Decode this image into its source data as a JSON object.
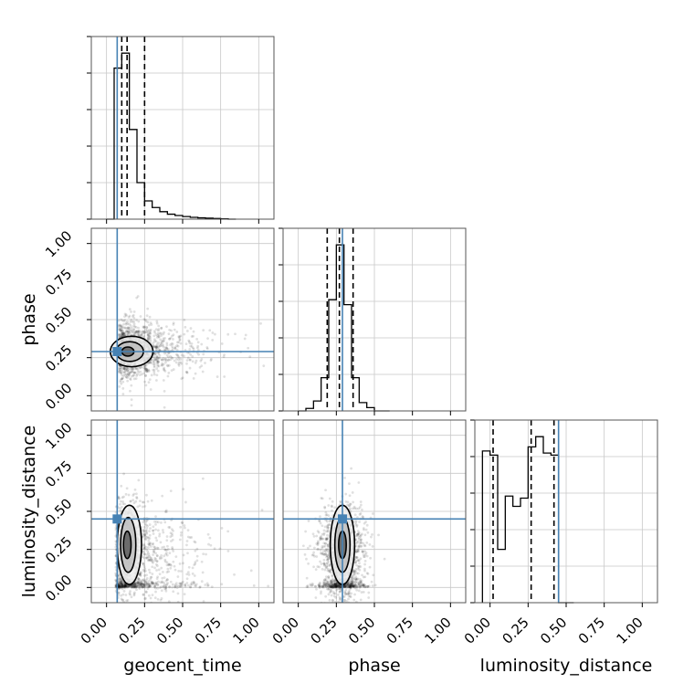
{
  "chart_data": {
    "type": "corner",
    "parameters": [
      "geocent_time",
      "phase",
      "luminosity_distance"
    ],
    "axis_labels": {
      "bottom": [
        "geocent_time",
        "phase",
        "luminosity_distance"
      ],
      "left": [
        "phase",
        "luminosity_distance"
      ]
    },
    "xlim": [
      -0.1,
      1.1
    ],
    "ylim": [
      -0.1,
      1.1
    ],
    "ticks": [
      0.0,
      0.25,
      0.5,
      0.75,
      1.0
    ],
    "tick_labels": [
      "0.00",
      "0.25",
      "0.50",
      "0.75",
      "1.00"
    ],
    "grid": true,
    "truth": {
      "geocent_time": 0.07,
      "phase": 0.29,
      "luminosity_distance": 0.45
    },
    "truth_color": "#4682b4",
    "histograms": {
      "geocent_time": {
        "bins": [
          0.0,
          0.05,
          0.1,
          0.15,
          0.2,
          0.25,
          0.3,
          0.35,
          0.4,
          0.45,
          0.5,
          0.55,
          0.6,
          0.65,
          0.7,
          0.75,
          0.8,
          0.85
        ],
        "heights": [
          0.0,
          0.91,
          1.0,
          0.54,
          0.22,
          0.11,
          0.07,
          0.045,
          0.03,
          0.022,
          0.016,
          0.011,
          0.008,
          0.006,
          0.004,
          0.002,
          0.0
        ],
        "quantiles": [
          0.1,
          0.135,
          0.25
        ]
      },
      "phase": {
        "bins": [
          0.0,
          0.05,
          0.1,
          0.15,
          0.2,
          0.25,
          0.3,
          0.35,
          0.4,
          0.45,
          0.5,
          0.55,
          0.6
        ],
        "heights": [
          0.0,
          0.015,
          0.06,
          0.2,
          0.67,
          1.0,
          0.64,
          0.2,
          0.05,
          0.02,
          0.0,
          0.0
        ],
        "quantiles": [
          0.19,
          0.27,
          0.36
        ]
      },
      "luminosity_distance": {
        "bins": [
          -0.05,
          0.0,
          0.05,
          0.1,
          0.15,
          0.2,
          0.25,
          0.3,
          0.35,
          0.4,
          0.45,
          0.5,
          0.55
        ],
        "heights": [
          0.74,
          0.72,
          0.26,
          0.52,
          0.47,
          0.51,
          0.76,
          0.81,
          0.73,
          0.72,
          0.0,
          0.0
        ],
        "quantiles": [
          0.02,
          0.27,
          0.42
        ]
      }
    },
    "scatter_clouds": {
      "geocent_time__phase": {
        "x_center": 0.12,
        "x_spread_right": 0.3,
        "y_center": 0.3,
        "y_spread": 0.09
      },
      "geocent_time__luminosity_distance": {
        "x_center": 0.1,
        "x_spread_right": 0.3,
        "y_center": 0.22,
        "y_spread": 0.17
      },
      "phase__luminosity_distance": {
        "x_center": 0.29,
        "x_spread": 0.08,
        "y_center": 0.22,
        "y_spread": 0.17
      }
    }
  }
}
